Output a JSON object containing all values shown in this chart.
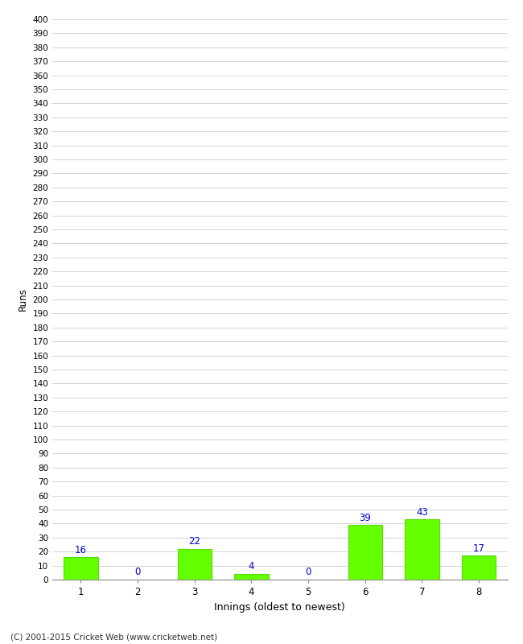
{
  "categories": [
    "1",
    "2",
    "3",
    "4",
    "5",
    "6",
    "7",
    "8"
  ],
  "values": [
    16,
    0,
    22,
    4,
    0,
    39,
    43,
    17
  ],
  "bar_color": "#66ff00",
  "bar_edge_color": "#55dd00",
  "label_color": "#0000cc",
  "xlabel": "Innings (oldest to newest)",
  "ylabel": "Runs",
  "ylim": [
    0,
    400
  ],
  "ytick_step": 10,
  "background_color": "#ffffff",
  "grid_color": "#cccccc",
  "footer": "(C) 2001-2015 Cricket Web (www.cricketweb.net)"
}
